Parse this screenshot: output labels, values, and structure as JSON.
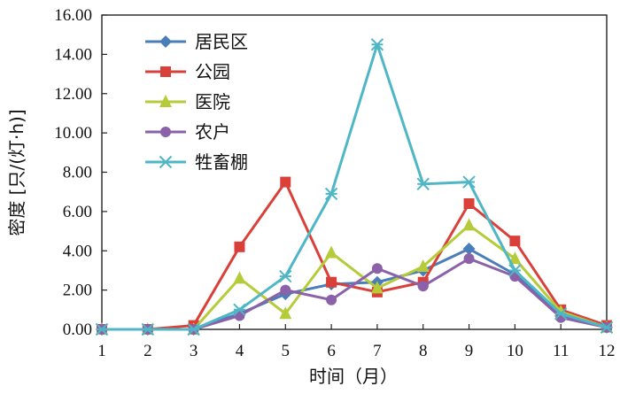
{
  "chart_data": {
    "type": "line",
    "xlabel": "时间（月）",
    "ylabel": "密度 [只/(灯·h)]",
    "categories": [
      "1",
      "2",
      "3",
      "4",
      "5",
      "6",
      "7",
      "8",
      "9",
      "10",
      "11",
      "12"
    ],
    "ylim": [
      0,
      16
    ],
    "yticks": [
      "0.00",
      "2.00",
      "4.00",
      "6.00",
      "8.00",
      "10.00",
      "12.00",
      "14.00",
      "16.00"
    ],
    "grid": false,
    "legend_position": "top-left",
    "series": [
      {
        "name": "居民区",
        "color": "#4a7ebb",
        "marker": "diamond",
        "values": [
          0,
          0,
          0,
          0.8,
          1.8,
          2.3,
          2.4,
          3.0,
          4.1,
          2.8,
          0.7,
          0.1
        ]
      },
      {
        "name": "公园",
        "color": "#d9403a",
        "marker": "square",
        "values": [
          0,
          0,
          0.2,
          4.2,
          7.5,
          2.4,
          1.9,
          2.4,
          6.4,
          4.5,
          1.0,
          0.2
        ]
      },
      {
        "name": "医院",
        "color": "#b5cb3a",
        "marker": "triangle",
        "values": [
          0,
          0,
          0,
          2.6,
          0.8,
          3.9,
          2.1,
          3.2,
          5.3,
          3.6,
          0.9,
          0.1
        ]
      },
      {
        "name": "农户",
        "color": "#8b62a9",
        "marker": "circle",
        "values": [
          0,
          0,
          0,
          0.7,
          2.0,
          1.5,
          3.1,
          2.2,
          3.6,
          2.7,
          0.6,
          0.1
        ]
      },
      {
        "name": "牲畜棚",
        "color": "#4fb6c6",
        "marker": "star",
        "values": [
          0,
          0,
          0,
          1.0,
          2.7,
          6.9,
          14.5,
          7.4,
          7.5,
          3.0,
          0.8,
          0.1
        ]
      }
    ]
  }
}
